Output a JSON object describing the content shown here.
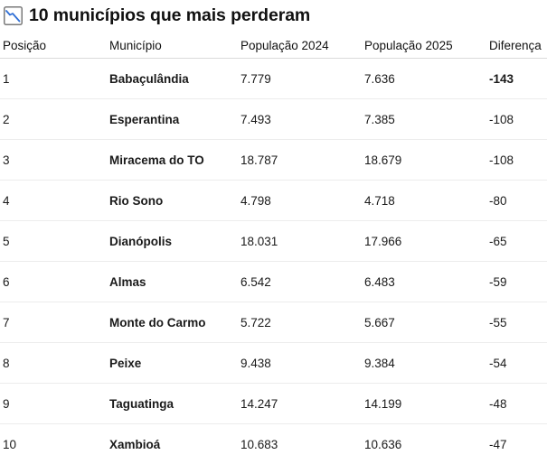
{
  "header": {
    "icon": "chart-decreasing-icon",
    "title": "10 municípios que mais perderam"
  },
  "table": {
    "columns": [
      "Posição",
      "Município",
      "População 2024",
      "População 2025",
      "Diferença"
    ],
    "rows": [
      {
        "pos": "1",
        "municipio": "Babaçulândia",
        "pop2024": "7.779",
        "pop2025": "7.636",
        "diff": "-143"
      },
      {
        "pos": "2",
        "municipio": "Esperantina",
        "pop2024": "7.493",
        "pop2025": "7.385",
        "diff": "-108"
      },
      {
        "pos": "3",
        "municipio": "Miracema do TO",
        "pop2024": "18.787",
        "pop2025": "18.679",
        "diff": "-108"
      },
      {
        "pos": "4",
        "municipio": "Rio Sono",
        "pop2024": "4.798",
        "pop2025": "4.718",
        "diff": "-80"
      },
      {
        "pos": "5",
        "municipio": "Dianópolis",
        "pop2024": "18.031",
        "pop2025": "17.966",
        "diff": "-65"
      },
      {
        "pos": "6",
        "municipio": "Almas",
        "pop2024": "6.542",
        "pop2025": "6.483",
        "diff": "-59"
      },
      {
        "pos": "7",
        "municipio": "Monte do Carmo",
        "pop2024": "5.722",
        "pop2025": "5.667",
        "diff": "-55"
      },
      {
        "pos": "8",
        "municipio": "Peixe",
        "pop2024": "9.438",
        "pop2025": "9.384",
        "diff": "-54"
      },
      {
        "pos": "9",
        "municipio": "Taguatinga",
        "pop2024": "14.247",
        "pop2025": "14.199",
        "diff": "-48"
      },
      {
        "pos": "10",
        "municipio": "Xambioá",
        "pop2024": "10.683",
        "pop2025": "10.636",
        "diff": "-47"
      }
    ]
  },
  "colors": {
    "icon_border": "#7a7a7a",
    "icon_line": "#2f6fd6"
  }
}
